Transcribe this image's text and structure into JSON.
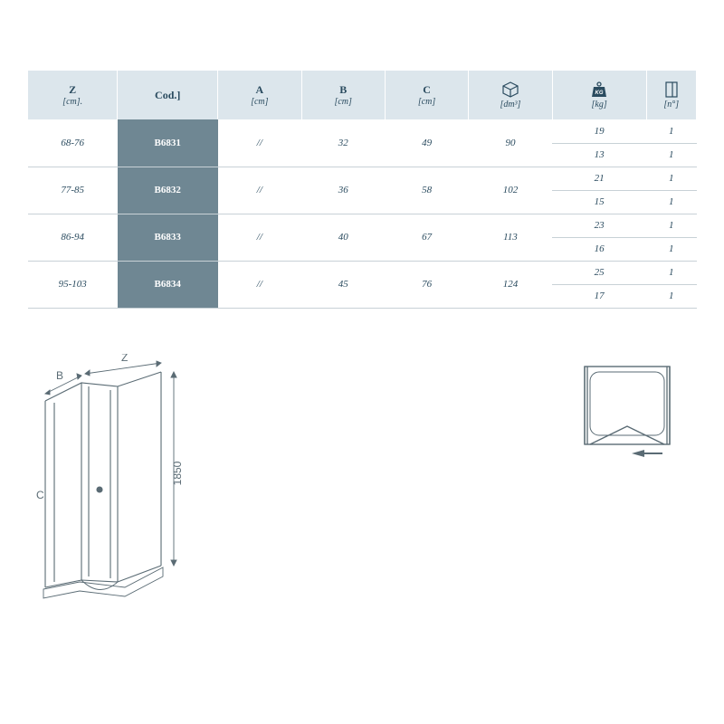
{
  "colors": {
    "header_bg": "#dce6ec",
    "code_bg": "#6f8793",
    "text": "#2a4b5f",
    "rule": "#c8d1d6",
    "diagram_stroke": "#5a6b74"
  },
  "table": {
    "headers": {
      "z": {
        "main": "Z",
        "sub": "[cm]."
      },
      "cod": {
        "main": "Cod.]"
      },
      "a": {
        "main": "A",
        "sub": "[cm]"
      },
      "b": {
        "main": "B",
        "sub": "[cm]"
      },
      "c": {
        "main": "C",
        "sub": "[cm]"
      },
      "dm": {
        "icon": "box",
        "sub": "[dm³]"
      },
      "kg": {
        "icon": "weight",
        "sub": "[kg]"
      },
      "n": {
        "icon": "panel",
        "sub": "[n°]"
      }
    },
    "rows": [
      {
        "z": "68-76",
        "code": "B6831",
        "a": "//",
        "b": "32",
        "c": "49",
        "dm": "90",
        "kg": [
          "19",
          "13"
        ],
        "n": [
          "1",
          "1"
        ]
      },
      {
        "z": "77-85",
        "code": "B6832",
        "a": "//",
        "b": "36",
        "c": "58",
        "dm": "102",
        "kg": [
          "21",
          "15"
        ],
        "n": [
          "1",
          "1"
        ]
      },
      {
        "z": "86-94",
        "code": "B6833",
        "a": "//",
        "b": "40",
        "c": "67",
        "dm": "113",
        "kg": [
          "23",
          "16"
        ],
        "n": [
          "1",
          "1"
        ]
      },
      {
        "z": "95-103",
        "code": "B6834",
        "a": "//",
        "b": "45",
        "c": "76",
        "dm": "124",
        "kg": [
          "25",
          "17"
        ],
        "n": [
          "1",
          "1"
        ]
      }
    ]
  },
  "diagram": {
    "height_label": "1850",
    "label_B": "B",
    "label_Z": "Z",
    "label_C": "C"
  }
}
